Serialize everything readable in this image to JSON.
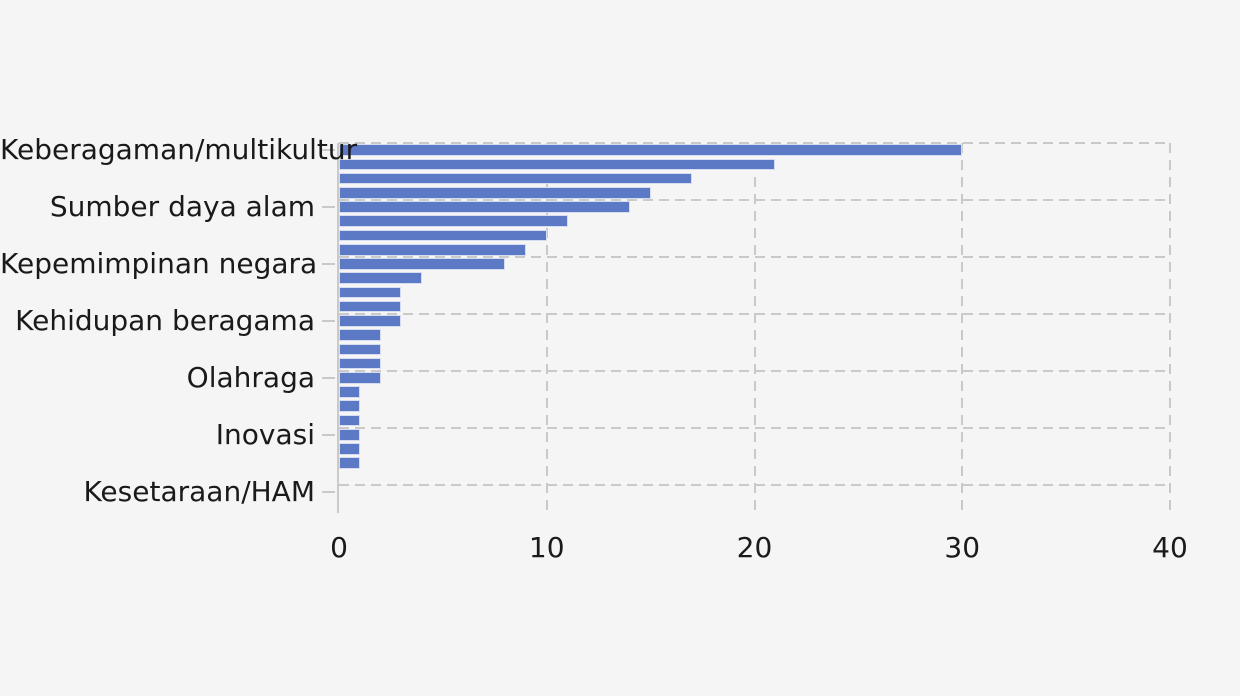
{
  "chart_data": {
    "type": "bar",
    "orientation": "horizontal",
    "title": "",
    "xlabel": "",
    "ylabel": "",
    "categories": [
      "Keberagaman/multikultur",
      "",
      "",
      "",
      "Sumber daya alam",
      "",
      "",
      "",
      "Kepemimpinan negara",
      "",
      "",
      "",
      "Kehidupan beragama",
      "",
      "",
      "",
      "Olahraga",
      "",
      "",
      "",
      "Inovasi",
      "",
      "",
      "",
      "Kesetaraan/HAM"
    ],
    "values": [
      30,
      21,
      17,
      15,
      14,
      11,
      10,
      9,
      8,
      4,
      3,
      3,
      3,
      2,
      2,
      2,
      2,
      1,
      1,
      1,
      1,
      1,
      1,
      0,
      0
    ],
    "xlim": [
      0,
      40
    ],
    "x_ticks": [
      0,
      10,
      20,
      30,
      40
    ],
    "y_label_every_n_bars": 4,
    "grid": "dashed",
    "legend": "none",
    "colors": {
      "bar": "#5c79c6",
      "background": "#f5f5f6",
      "gridline": "#c9c9c9",
      "axis_line": "#c9c9c9",
      "tick_text": "#1a1a1a"
    }
  }
}
